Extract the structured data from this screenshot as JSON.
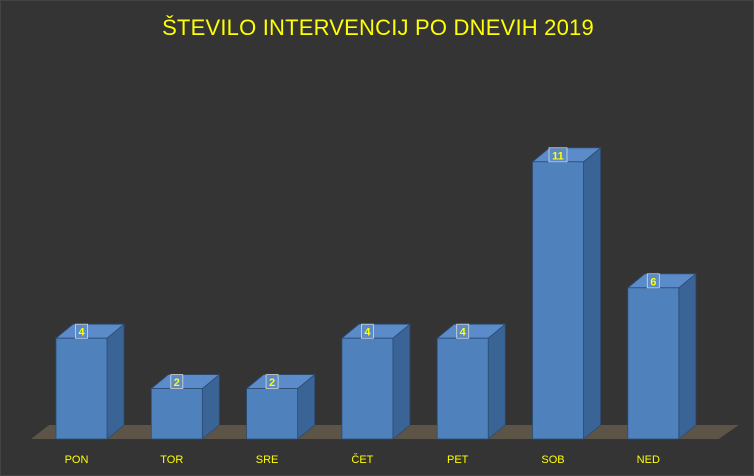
{
  "chart_data": {
    "type": "bar",
    "title": "ŠTEVILO INTERVENCIJ PO DNEVIH 2019",
    "categories": [
      "PON",
      "TOR",
      "SRE",
      "ČET",
      "PET",
      "SOB",
      "NED"
    ],
    "series": [
      {
        "values": [
          4,
          2,
          2,
          4,
          4,
          11,
          6
        ]
      }
    ],
    "data_labels": true,
    "ylim": [
      0,
      11
    ],
    "style": "3d-column",
    "colors": {
      "bar_front": "#4f81bd",
      "bar_side": "#3a6496",
      "bar_top": "#5b8cc9",
      "floor": "#5c5446",
      "text": "#ffff00",
      "background": "#343434"
    }
  }
}
